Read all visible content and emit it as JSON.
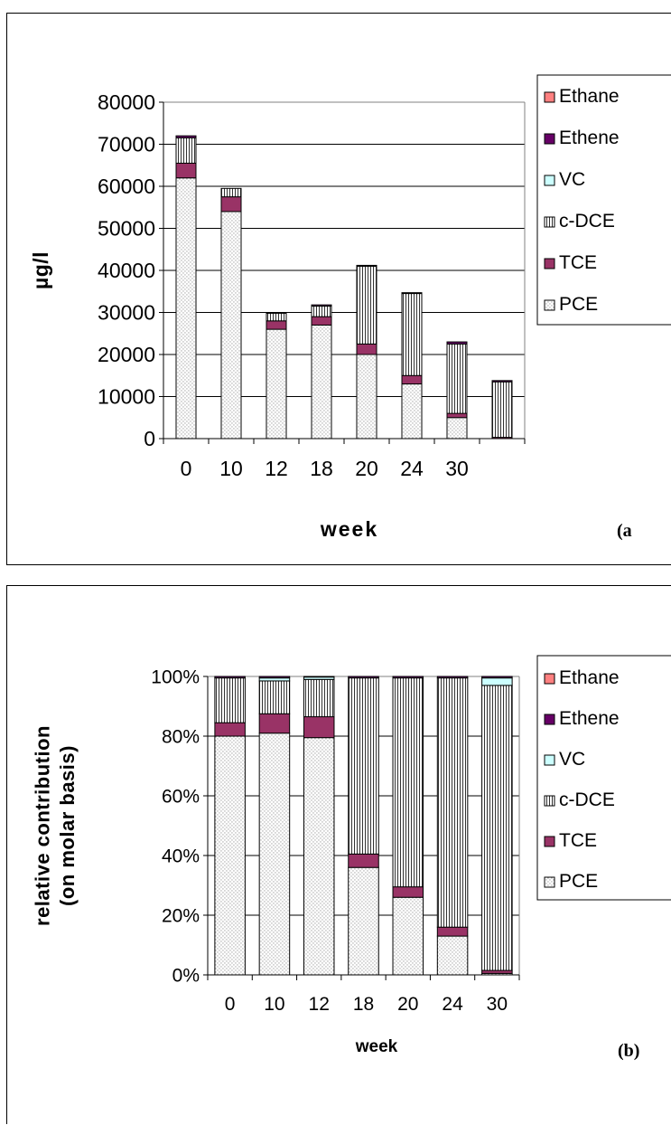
{
  "chart_data": [
    {
      "type": "bar",
      "stacked": true,
      "panel_label": "(a",
      "xlabel": "week",
      "ylabel": "µg/l",
      "ylim": [
        0,
        80000
      ],
      "yticks": [
        0,
        10000,
        20000,
        30000,
        40000,
        50000,
        60000,
        70000,
        80000
      ],
      "ytick_labels": [
        "0",
        "10000",
        "20000",
        "30000",
        "40000",
        "50000",
        "60000",
        "70000",
        "80000"
      ],
      "categories": [
        "0",
        "10",
        "12",
        "18",
        "20",
        "24",
        "30",
        ""
      ],
      "grid": true,
      "legend_position": "right",
      "legend_order": [
        "Ethane",
        "Ethene",
        "VC",
        "c-DCE",
        "TCE",
        "PCE"
      ],
      "series": [
        {
          "name": "PCE",
          "values": [
            62000,
            54000,
            26000,
            27000,
            20000,
            13000,
            5000,
            0
          ]
        },
        {
          "name": "TCE",
          "values": [
            3500,
            3500,
            2000,
            2000,
            2500,
            2000,
            1000,
            300
          ]
        },
        {
          "name": "c-DCE",
          "values": [
            6000,
            2000,
            1800,
            2500,
            18500,
            19500,
            16500,
            13200
          ]
        },
        {
          "name": "VC",
          "values": [
            0,
            0,
            0,
            0,
            0,
            0,
            0,
            0
          ]
        },
        {
          "name": "Ethene",
          "values": [
            500,
            0,
            0,
            300,
            200,
            200,
            500,
            300
          ]
        },
        {
          "name": "Ethane",
          "values": [
            0,
            0,
            0,
            0,
            0,
            0,
            0,
            0
          ]
        }
      ]
    },
    {
      "type": "bar",
      "stacked": true,
      "panel_label": "(b)",
      "xlabel": "week",
      "ylabel": "relative contribution (on molar basis)",
      "ylabel_lines": [
        "relative contribution",
        "(on molar basis)"
      ],
      "ylim": [
        0,
        100
      ],
      "yticks": [
        0,
        20,
        40,
        60,
        80,
        100
      ],
      "ytick_labels": [
        "0%",
        "20%",
        "40%",
        "60%",
        "80%",
        "100%"
      ],
      "categories": [
        "0",
        "10",
        "12",
        "18",
        "20",
        "24",
        "30"
      ],
      "grid": true,
      "legend_position": "right",
      "legend_order": [
        "Ethane",
        "Ethene",
        "VC",
        "c-DCE",
        "TCE",
        "PCE"
      ],
      "series": [
        {
          "name": "PCE",
          "values": [
            80,
            81,
            79.5,
            36,
            26,
            13,
            0.5
          ]
        },
        {
          "name": "TCE",
          "values": [
            4.5,
            6.5,
            7,
            4.5,
            3.5,
            3,
            1
          ]
        },
        {
          "name": "c-DCE",
          "values": [
            15,
            11,
            12.5,
            59,
            70,
            83.5,
            95.5
          ]
        },
        {
          "name": "VC",
          "values": [
            0,
            1,
            0.8,
            0,
            0,
            0,
            2.5
          ]
        },
        {
          "name": "Ethene",
          "values": [
            0.5,
            0.5,
            0.2,
            0.5,
            0.5,
            0.5,
            0.5
          ]
        },
        {
          "name": "Ethane",
          "values": [
            0,
            0,
            0,
            0,
            0,
            0,
            0
          ]
        }
      ]
    }
  ],
  "styles": {
    "PCE": {
      "fill": "#ffffff",
      "pattern": "dots"
    },
    "TCE": {
      "fill": "#993366",
      "pattern": "none"
    },
    "c-DCE": {
      "fill": "#ffffff",
      "pattern": "vlines"
    },
    "VC": {
      "fill": "#ccffff",
      "pattern": "none"
    },
    "Ethene": {
      "fill": "#660066",
      "pattern": "none"
    },
    "Ethane": {
      "fill": "#ff8080",
      "pattern": "none"
    },
    "grid_color": "#000000",
    "plot_bg": "#ffffff"
  }
}
